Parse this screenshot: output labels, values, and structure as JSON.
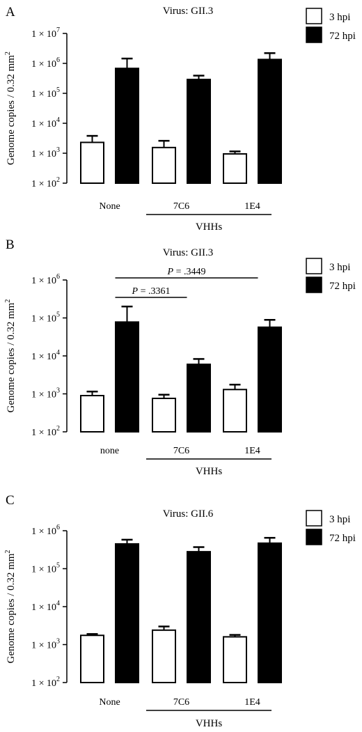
{
  "chart_data": [
    {
      "type": "bar",
      "panel_label": "A",
      "title": "Virus: GII.3",
      "ylabel": "Genome copies / 0.32 mm²",
      "yscale": "log",
      "ylim": [
        100,
        10000000
      ],
      "y_ticks": [
        {
          "mant": "1 × 10",
          "exp": "2"
        },
        {
          "mant": "1 × 10",
          "exp": "3"
        },
        {
          "mant": "1 × 10",
          "exp": "4"
        },
        {
          "mant": "1 × 10",
          "exp": "5"
        },
        {
          "mant": "1 × 10",
          "exp": "6"
        },
        {
          "mant": "1 × 10",
          "exp": "7"
        }
      ],
      "categories": [
        "None",
        "7C6",
        "1E4"
      ],
      "group_label": "VHHs",
      "series": [
        {
          "name": "3 hpi",
          "fill": "#ffffff",
          "values": [
            2300,
            1550,
            950
          ],
          "errors_upper": [
            3800,
            2600,
            1150
          ]
        },
        {
          "name": "72 hpi",
          "fill": "#000000",
          "values": [
            680000,
            290000,
            1350000
          ],
          "errors_upper": [
            1450000,
            390000,
            2200000
          ]
        }
      ],
      "annotations": [],
      "legend_position": "top-right"
    },
    {
      "type": "bar",
      "panel_label": "B",
      "title": "Virus: GII.3",
      "ylabel": "Genome copies / 0.32 mm²",
      "yscale": "log",
      "ylim": [
        100,
        1000000
      ],
      "y_ticks": [
        {
          "mant": "1 × 10",
          "exp": "2"
        },
        {
          "mant": "1 × 10",
          "exp": "3"
        },
        {
          "mant": "1 × 10",
          "exp": "4"
        },
        {
          "mant": "1 × 10",
          "exp": "5"
        },
        {
          "mant": "1 × 10",
          "exp": "6"
        }
      ],
      "categories": [
        "none",
        "7C6",
        "1E4"
      ],
      "group_label": "VHHs",
      "series": [
        {
          "name": "3 hpi",
          "fill": "#ffffff",
          "values": [
            900,
            760,
            1300
          ],
          "errors_upper": [
            1150,
            950,
            1750
          ]
        },
        {
          "name": "72 hpi",
          "fill": "#000000",
          "values": [
            78000,
            6000,
            57000
          ],
          "errors_upper": [
            200000,
            8300,
            89000
          ]
        }
      ],
      "annotations": [
        {
          "p_label": "P",
          "p_value": " = .3361",
          "from": 0,
          "to": 1
        },
        {
          "p_label": "P",
          "p_value": " = .3449",
          "from": 0,
          "to": 2
        }
      ],
      "legend_position": "top-right"
    },
    {
      "type": "bar",
      "panel_label": "C",
      "title": "Virus: GII.6",
      "ylabel": "Genome copies / 0.32 mm²",
      "yscale": "log",
      "ylim": [
        100,
        1000000
      ],
      "y_ticks": [
        {
          "mant": "1 × 10",
          "exp": "2"
        },
        {
          "mant": "1 × 10",
          "exp": "3"
        },
        {
          "mant": "1 × 10",
          "exp": "4"
        },
        {
          "mant": "1 × 10",
          "exp": "5"
        },
        {
          "mant": "1 × 10",
          "exp": "6"
        }
      ],
      "categories": [
        "None",
        "7C6",
        "1E4"
      ],
      "group_label": "VHHs",
      "series": [
        {
          "name": "3 hpi",
          "fill": "#ffffff",
          "values": [
            1750,
            2400,
            1600
          ],
          "errors_upper": [
            1900,
            3000,
            1800
          ]
        },
        {
          "name": "72 hpi",
          "fill": "#000000",
          "values": [
            450000,
            280000,
            470000
          ],
          "errors_upper": [
            580000,
            370000,
            650000
          ]
        }
      ],
      "annotations": [],
      "legend_position": "top-right"
    }
  ]
}
